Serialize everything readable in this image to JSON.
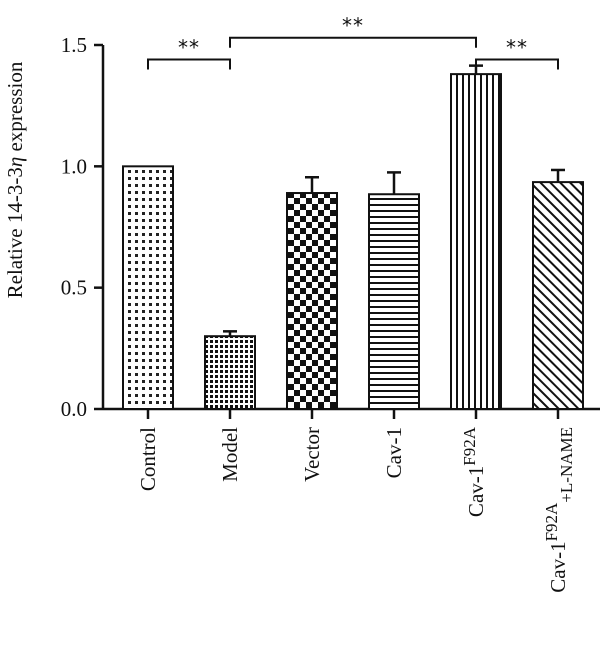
{
  "chart_data": {
    "type": "bar",
    "categories": [
      "Control",
      "Model",
      "Vector",
      "Cav-1",
      "Cav-1F92A",
      "Cav-1F92A+L-NAME"
    ],
    "category_labels": [
      {
        "base": "Control",
        "sup": "",
        "sub": ""
      },
      {
        "base": "Model",
        "sup": "",
        "sub": ""
      },
      {
        "base": "Vector",
        "sup": "",
        "sub": ""
      },
      {
        "base": "Cav-1",
        "sup": "",
        "sub": ""
      },
      {
        "base": "Cav-1",
        "sup": "F92A",
        "sub": ""
      },
      {
        "base": "Cav-1",
        "sup": "F92A",
        "sub": "+L-NAME"
      }
    ],
    "values": [
      1.0,
      0.3,
      0.89,
      0.885,
      1.38,
      0.935
    ],
    "errors": [
      0.0,
      0.02,
      0.065,
      0.09,
      0.035,
      0.05
    ],
    "patterns": [
      "dots-fine",
      "dots-dense",
      "checker",
      "hlines",
      "vlines",
      "diagonal"
    ],
    "ylabel": {
      "prefix": "Relative 14-3-3",
      "symbol": "η",
      "suffix": " expression"
    },
    "ylim": [
      0,
      1.5
    ],
    "yticks": [
      0.0,
      0.5,
      1.0,
      1.5
    ],
    "ytick_labels": [
      "0.0",
      "0.5",
      "1.0",
      "1.5"
    ],
    "significance": [
      {
        "from": 0,
        "to": 1,
        "label": "**",
        "y": 1.44
      },
      {
        "from": 1,
        "to": 4,
        "label": "**",
        "y": 1.53
      },
      {
        "from": 4,
        "to": 5,
        "label": "**",
        "y": 1.44
      }
    ],
    "grid": false,
    "legend": "none"
  }
}
